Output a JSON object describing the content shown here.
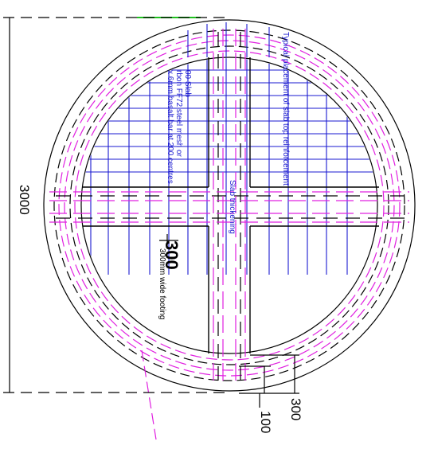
{
  "labels": {
    "top_reinforcement": "Typical placement of slab top reinforcement",
    "slab_note_line1": "00 Slab",
    "slab_note_line2": "rbon FF72 steel mesh or",
    "slab_note_line3": "x 6mm basalt bar at 200 centres",
    "slab_thickening": "Slab thickening",
    "dim_3000": "3000",
    "dim_300_footing": "300",
    "footing_width": "300mm wide footing",
    "dim_300_bottom": "300",
    "dim_100": "100"
  },
  "colors": {
    "background": "#ffffff",
    "outline": "#000000",
    "reinforcement": "#1a1ad0",
    "footing_bars": "#e020e0",
    "marker": "#20c020"
  }
}
